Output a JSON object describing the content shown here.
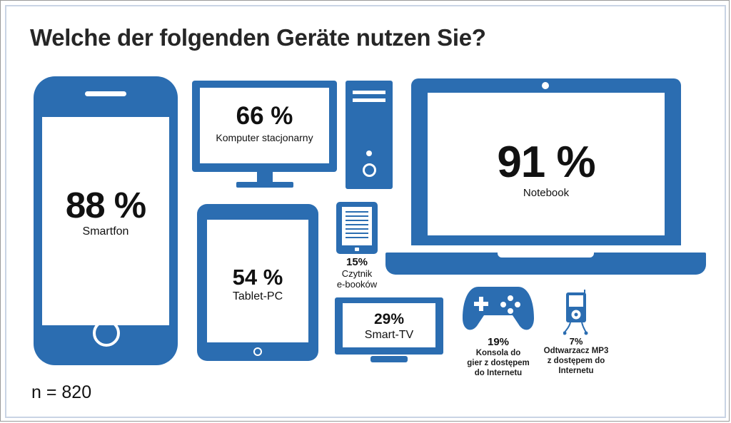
{
  "title": "Welche der folgenden Geräte nutzen Sie?",
  "sample": "n = 820",
  "accent_color": "#2B6DB1",
  "chart_data": {
    "type": "pictogram",
    "title": "Welche der folgenden Geräte nutzen Sie?",
    "unit": "%",
    "categories": [
      "Notebook",
      "Smartfon",
      "Komputer stacjonarny",
      "Tablet-PC",
      "Smart-TV",
      "Konsola do gier z dostępem do Internetu",
      "Czytnik e-booków",
      "Odtwarzacz MP3 z dostępem do Internetu"
    ],
    "values": [
      91,
      88,
      66,
      54,
      29,
      19,
      15,
      7
    ],
    "icons": [
      "laptop-icon",
      "smartphone-icon",
      "desktop-monitor-icon",
      "tablet-icon",
      "tv-icon",
      "gamepad-icon",
      "ereader-icon",
      "mp3-player-icon"
    ]
  },
  "devices": {
    "smartphone": {
      "pct": "88 %",
      "label": "Smartfon"
    },
    "desktop": {
      "pct": "66 %",
      "label": "Komputer stacjonarny"
    },
    "laptop": {
      "pct": "91 %",
      "label": "Notebook"
    },
    "tablet": {
      "pct": "54 %",
      "label": "Tablet-PC"
    },
    "ereader": {
      "pct": "15%",
      "label_1": "Czytnik",
      "label_2": "e-booków"
    },
    "tv": {
      "pct": "29%",
      "label": "Smart-TV"
    },
    "console": {
      "pct": "19%",
      "label_1": "Konsola do",
      "label_2": "gier z dostępem",
      "label_3": "do Internetu"
    },
    "mp3": {
      "pct": "7%",
      "label_1": "Odtwarzacz MP3",
      "label_2": "z dostępem do",
      "label_3": "Internetu"
    }
  }
}
